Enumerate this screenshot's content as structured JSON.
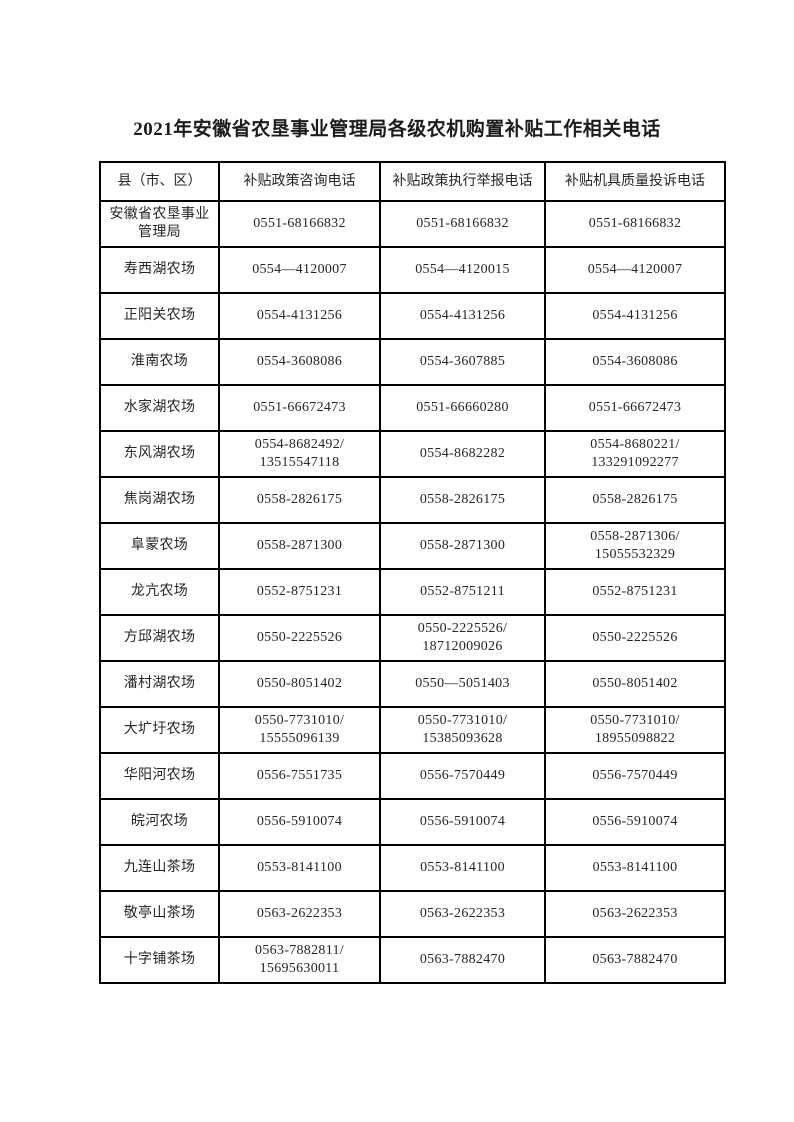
{
  "title": "2021年安徽省农垦事业管理局各级农机购置补贴工作相关电话",
  "colors": {
    "page_background": "#ffffff",
    "table_border": "#000000",
    "text": "#262626"
  },
  "table": {
    "headers": [
      "县（市、区）",
      "补贴政策咨询电话",
      "补贴政策执行举报电话",
      "补贴机具质量投诉电话"
    ],
    "rows": [
      [
        "安徽省农垦事业\n管理局",
        "0551-68166832",
        "0551-68166832",
        "0551-68166832"
      ],
      [
        "寿西湖农场",
        "0554—4120007",
        "0554—4120015",
        "0554—4120007"
      ],
      [
        "正阳关农场",
        "0554-4131256",
        "0554-4131256",
        "0554-4131256"
      ],
      [
        "淮南农场",
        "0554-3608086",
        "0554-3607885",
        "0554-3608086"
      ],
      [
        "水家湖农场",
        "0551-66672473",
        "0551-66660280",
        "0551-66672473"
      ],
      [
        "东风湖农场",
        "0554-8682492/\n13515547118",
        "0554-8682282",
        "0554-8680221/\n133291092277"
      ],
      [
        "焦岗湖农场",
        "0558-2826175",
        "0558-2826175",
        "0558-2826175"
      ],
      [
        "阜蒙农场",
        "0558-2871300",
        "0558-2871300",
        "0558-2871306/\n15055532329"
      ],
      [
        "龙亢农场",
        "0552-8751231",
        "0552-8751211",
        "0552-8751231"
      ],
      [
        "方邱湖农场",
        "0550-2225526",
        "0550-2225526/\n18712009026",
        "0550-2225526"
      ],
      [
        "潘村湖农场",
        "0550-8051402",
        "0550—5051403",
        "0550-8051402"
      ],
      [
        "大圹圩农场",
        "0550-7731010/\n15555096139",
        "0550-7731010/\n15385093628",
        "0550-7731010/\n18955098822"
      ],
      [
        "华阳河农场",
        "0556-7551735",
        "0556-7570449",
        "0556-7570449"
      ],
      [
        "皖河农场",
        "0556-5910074",
        "0556-5910074",
        "0556-5910074"
      ],
      [
        "九连山茶场",
        "0553-8141100",
        "0553-8141100",
        "0553-8141100"
      ],
      [
        "敬亭山茶场",
        "0563-2622353",
        "0563-2622353",
        "0563-2622353"
      ],
      [
        "十字铺茶场",
        "0563-7882811/\n15695630011",
        "0563-7882470",
        "0563-7882470"
      ]
    ]
  }
}
